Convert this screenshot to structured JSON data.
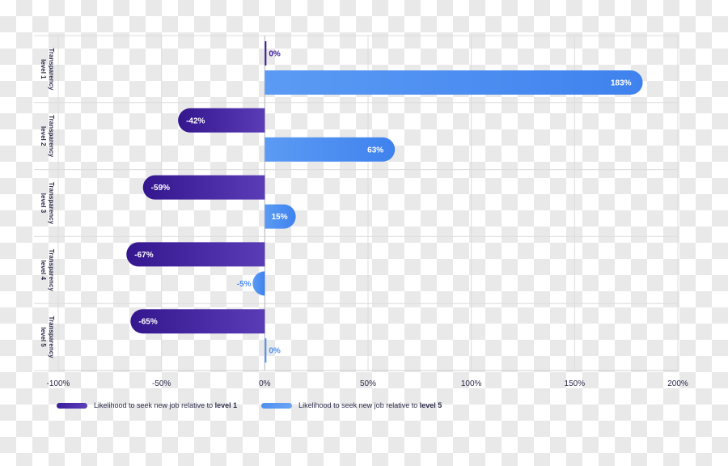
{
  "chart_data": {
    "type": "bar",
    "orientation": "horizontal",
    "categories": [
      "Transparency level 1",
      "Transparency level 2",
      "Transparency level 3",
      "Transparency level 4",
      "Transparency level 5"
    ],
    "category_lines": [
      [
        "Transparency",
        "level 1"
      ],
      [
        "Transparency",
        "level 2"
      ],
      [
        "Transparency",
        "level 3"
      ],
      [
        "Transparency",
        "level 4"
      ],
      [
        "Transparency",
        "level 5"
      ]
    ],
    "series": [
      {
        "name": "Likelihood to seek new job relative to level 1",
        "values": [
          0,
          -42,
          -59,
          -67,
          -65
        ],
        "color": "#3a1d9a"
      },
      {
        "name": "Likelihood to seek new job relative to level 5",
        "values": [
          183,
          63,
          15,
          -5,
          0
        ],
        "color": "#4f8ff0"
      }
    ],
    "x_ticks": [
      -100,
      -50,
      0,
      50,
      100,
      150,
      200
    ],
    "x_tick_labels": [
      "-100%",
      "-50%",
      "0%",
      "50%",
      "100%",
      "150%",
      "200%"
    ],
    "data_labels": [
      [
        "0%",
        "-42%",
        "-59%",
        "-67%",
        "-65%"
      ],
      [
        "183%",
        "63%",
        "15%",
        "-5%",
        "0%"
      ]
    ],
    "xlim": [
      -100,
      200
    ],
    "grid": true,
    "legend_position": "bottom-left"
  },
  "legend": {
    "item1_prefix": "Likelihood to seek new job relative to ",
    "item1_bold": "level 1",
    "item2_prefix": "Likelihood to seek new job relative to ",
    "item2_bold": "level 5"
  },
  "colors": {
    "series1_dark": "#3a1d9a",
    "series1_light": "#5d3fb8",
    "series2_dark": "#4f8ff0",
    "series2_light": "#6aa4f5",
    "label_dark": "#2b2b4a"
  }
}
